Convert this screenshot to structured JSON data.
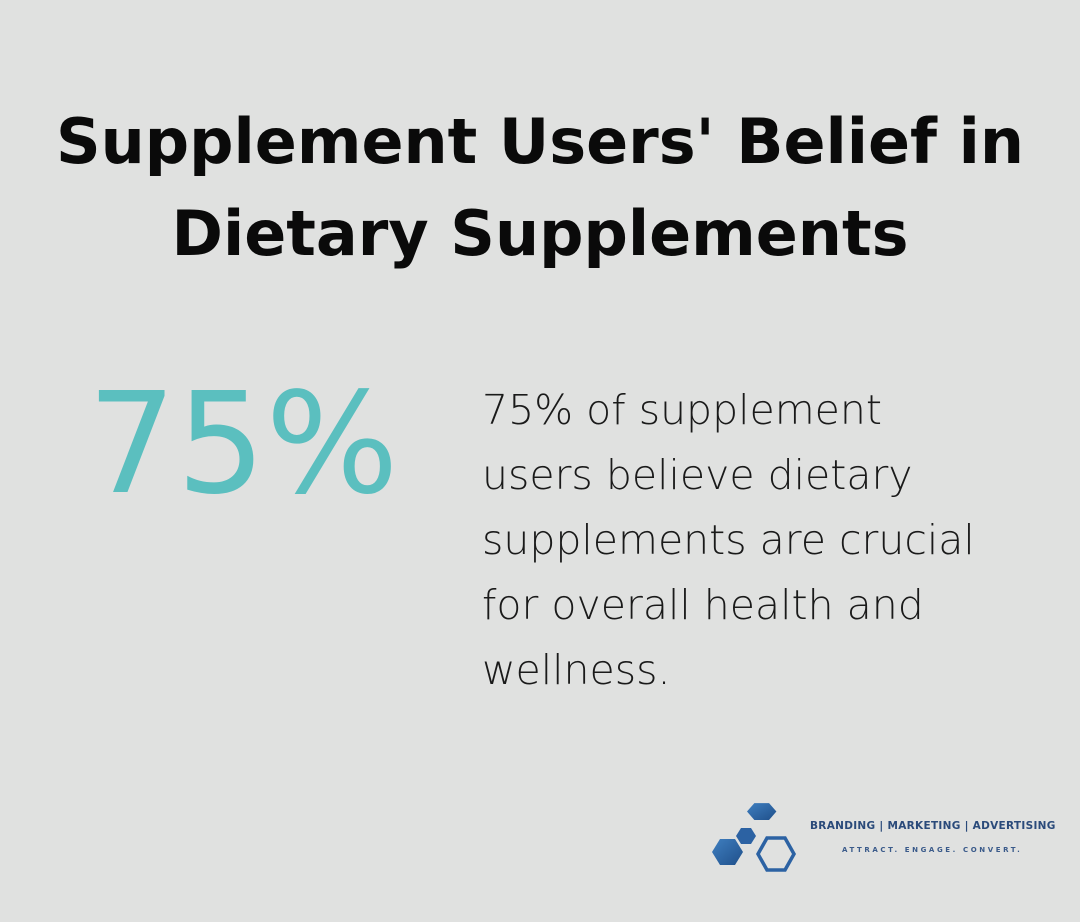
{
  "title": {
    "line1": "Supplement Users' Belief in",
    "line2": "Dietary Supplements"
  },
  "stat": {
    "value": "75%",
    "description_lines": [
      "75% of supplement",
      "users believe dietary",
      "supplements are crucial",
      "for overall health and",
      "wellness."
    ]
  },
  "logo": {
    "brand_line": "BRANDING | MARKETING | ADVERTISING",
    "tagline": "ATTRACT. ENGAGE. CONVERT.",
    "icon": "hexagon-cluster-icon"
  },
  "colors": {
    "background": "#e0e1e0",
    "accent": "#5bbfbf",
    "brand_blue": "#2a5f9e"
  }
}
